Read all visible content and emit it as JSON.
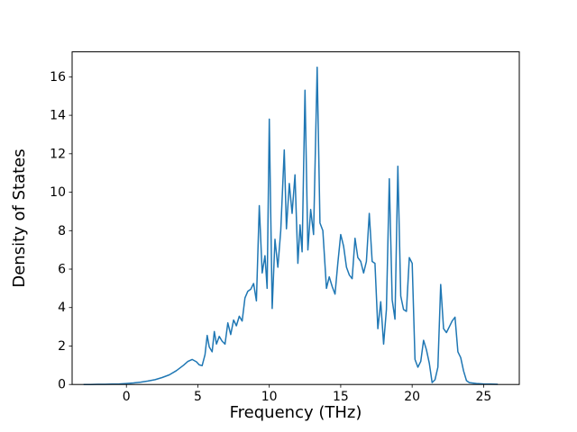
{
  "figure": {
    "background_color": "#ffffff"
  },
  "chart_data": {
    "type": "line",
    "title": "",
    "xlabel": "Frequency (THz)",
    "ylabel": "Density of States",
    "xlim": [
      -3.8,
      27.5
    ],
    "ylim": [
      0,
      17.3
    ],
    "xticks": [
      0,
      5,
      10,
      15,
      20,
      25
    ],
    "yticks": [
      0,
      2,
      4,
      6,
      8,
      10,
      12,
      14,
      16
    ],
    "grid": false,
    "legend": "none",
    "series": [
      {
        "name": "density-of-states",
        "color": "#1f77b4",
        "line_width": 1.5,
        "points": [
          [
            -3.0,
            0.0
          ],
          [
            -2.5,
            0.0
          ],
          [
            -2.0,
            0.01
          ],
          [
            -1.5,
            0.01
          ],
          [
            -1.0,
            0.02
          ],
          [
            -0.5,
            0.03
          ],
          [
            0.0,
            0.05
          ],
          [
            0.5,
            0.08
          ],
          [
            1.0,
            0.12
          ],
          [
            1.5,
            0.18
          ],
          [
            2.0,
            0.25
          ],
          [
            2.5,
            0.36
          ],
          [
            3.0,
            0.5
          ],
          [
            3.5,
            0.72
          ],
          [
            4.0,
            1.0
          ],
          [
            4.3,
            1.2
          ],
          [
            4.6,
            1.3
          ],
          [
            4.9,
            1.18
          ],
          [
            5.1,
            1.02
          ],
          [
            5.3,
            0.98
          ],
          [
            5.5,
            1.55
          ],
          [
            5.65,
            2.55
          ],
          [
            5.8,
            1.95
          ],
          [
            6.0,
            1.7
          ],
          [
            6.15,
            2.75
          ],
          [
            6.3,
            2.1
          ],
          [
            6.5,
            2.5
          ],
          [
            6.7,
            2.25
          ],
          [
            6.9,
            2.1
          ],
          [
            7.1,
            3.2
          ],
          [
            7.3,
            2.6
          ],
          [
            7.5,
            3.35
          ],
          [
            7.7,
            3.05
          ],
          [
            7.9,
            3.55
          ],
          [
            8.1,
            3.3
          ],
          [
            8.3,
            4.5
          ],
          [
            8.5,
            4.85
          ],
          [
            8.7,
            4.95
          ],
          [
            8.9,
            5.25
          ],
          [
            9.1,
            4.35
          ],
          [
            9.3,
            9.3
          ],
          [
            9.5,
            5.8
          ],
          [
            9.7,
            6.7
          ],
          [
            9.85,
            5.0
          ],
          [
            10.0,
            13.8
          ],
          [
            10.2,
            3.95
          ],
          [
            10.4,
            7.55
          ],
          [
            10.6,
            6.1
          ],
          [
            10.8,
            8.0
          ],
          [
            11.05,
            12.2
          ],
          [
            11.2,
            8.1
          ],
          [
            11.4,
            10.45
          ],
          [
            11.6,
            8.9
          ],
          [
            11.8,
            10.9
          ],
          [
            12.0,
            6.3
          ],
          [
            12.15,
            8.3
          ],
          [
            12.3,
            6.9
          ],
          [
            12.5,
            15.3
          ],
          [
            12.7,
            7.0
          ],
          [
            12.9,
            9.1
          ],
          [
            13.1,
            7.8
          ],
          [
            13.35,
            16.5
          ],
          [
            13.55,
            8.4
          ],
          [
            13.75,
            8.0
          ],
          [
            14.0,
            5.0
          ],
          [
            14.2,
            5.6
          ],
          [
            14.4,
            5.1
          ],
          [
            14.6,
            4.7
          ],
          [
            14.8,
            6.3
          ],
          [
            15.0,
            7.8
          ],
          [
            15.2,
            7.2
          ],
          [
            15.4,
            6.1
          ],
          [
            15.6,
            5.7
          ],
          [
            15.8,
            5.5
          ],
          [
            16.0,
            7.6
          ],
          [
            16.2,
            6.6
          ],
          [
            16.4,
            6.4
          ],
          [
            16.6,
            5.8
          ],
          [
            16.8,
            6.4
          ],
          [
            17.0,
            8.9
          ],
          [
            17.2,
            6.4
          ],
          [
            17.4,
            6.3
          ],
          [
            17.6,
            2.9
          ],
          [
            17.8,
            4.3
          ],
          [
            18.0,
            2.1
          ],
          [
            18.2,
            3.9
          ],
          [
            18.4,
            10.7
          ],
          [
            18.6,
            4.4
          ],
          [
            18.8,
            3.4
          ],
          [
            19.0,
            11.35
          ],
          [
            19.2,
            4.6
          ],
          [
            19.4,
            3.9
          ],
          [
            19.6,
            3.8
          ],
          [
            19.8,
            6.6
          ],
          [
            20.0,
            6.3
          ],
          [
            20.2,
            1.3
          ],
          [
            20.4,
            0.9
          ],
          [
            20.6,
            1.2
          ],
          [
            20.8,
            2.3
          ],
          [
            21.0,
            1.8
          ],
          [
            21.2,
            1.1
          ],
          [
            21.4,
            0.1
          ],
          [
            21.6,
            0.25
          ],
          [
            21.8,
            0.9
          ],
          [
            22.0,
            5.2
          ],
          [
            22.2,
            2.9
          ],
          [
            22.4,
            2.7
          ],
          [
            22.6,
            3.0
          ],
          [
            22.8,
            3.3
          ],
          [
            23.0,
            3.5
          ],
          [
            23.2,
            1.7
          ],
          [
            23.4,
            1.4
          ],
          [
            23.6,
            0.7
          ],
          [
            23.8,
            0.2
          ],
          [
            24.0,
            0.1
          ],
          [
            24.5,
            0.05
          ],
          [
            25.0,
            0.03
          ],
          [
            25.5,
            0.02
          ],
          [
            26.0,
            0.01
          ]
        ]
      }
    ]
  }
}
